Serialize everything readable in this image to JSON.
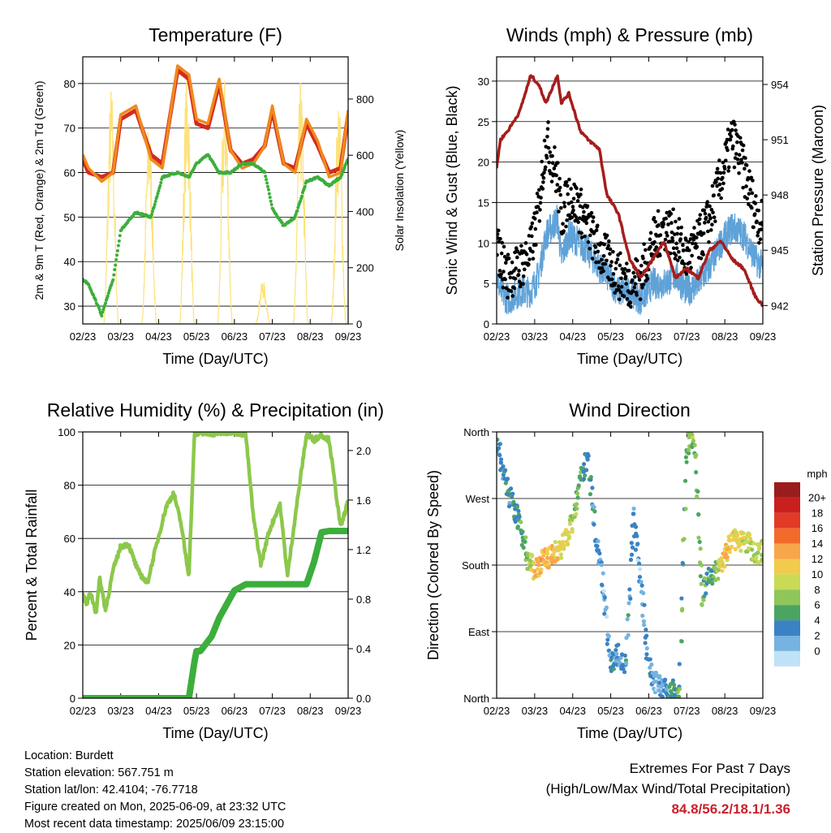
{
  "colors": {
    "temp_red": "#d42a20",
    "temp_orange": "#f08a1c",
    "dewpoint": "#3cae3c",
    "insolation": "#fde27a",
    "wind": "#5fa2d8",
    "gust": "#000000",
    "pressure": "#a51d1d",
    "rh": "#8cc84b",
    "precip": "#3cae3c",
    "extremes": "#c8202a"
  },
  "x_ticks": [
    "02/23",
    "03/23",
    "04/23",
    "05/23",
    "06/23",
    "07/23",
    "08/23",
    "09/23"
  ],
  "xlabel": "Time (Day/UTC)",
  "chart_data": [
    {
      "type": "line",
      "title": "Temperature (F)",
      "xlabel": "Time (Day/UTC)",
      "ylabel": "2m & 9m T (Red, Orange) & 2m Td (Green)",
      "ylabel_right": "Solar Insolation (Yellow)",
      "ylim": [
        26,
        86
      ],
      "ylim_right": [
        0,
        950
      ],
      "yticks": [
        30,
        40,
        50,
        60,
        70,
        80
      ],
      "yticks_right": [
        0,
        200,
        400,
        600,
        800
      ],
      "grid": true,
      "x": [
        0,
        0.15,
        0.5,
        0.8,
        1,
        1.4,
        1.8,
        2.1,
        2.5,
        2.8,
        3,
        3.3,
        3.6,
        3.9,
        4.2,
        4.5,
        4.8,
        5,
        5.3,
        5.6,
        5.9,
        6.2,
        6.5,
        6.8,
        7
      ],
      "series": [
        {
          "name": "2m T",
          "values": [
            64,
            61,
            58,
            60,
            73,
            75,
            63,
            61,
            84,
            82,
            72,
            71,
            81,
            65,
            61,
            62,
            66,
            75,
            62,
            60,
            72,
            67,
            59,
            60,
            74
          ]
        },
        {
          "name": "9m T",
          "values": [
            63,
            60,
            59,
            60,
            72,
            74,
            64,
            62,
            83,
            81,
            71,
            70,
            80,
            65,
            62,
            63,
            66,
            74,
            62,
            61,
            71,
            66,
            60,
            61,
            73
          ]
        },
        {
          "name": "2m Td",
          "values": [
            36,
            35,
            28,
            36,
            47,
            51,
            50,
            59,
            60,
            59,
            62,
            64,
            60,
            60,
            62,
            62,
            60,
            52,
            48,
            50,
            58,
            59,
            57,
            59,
            63
          ]
        }
      ],
      "insolation": {
        "days": [
          0,
          1,
          2,
          3,
          4,
          5,
          6
        ],
        "peaks": [
          860,
          750,
          920,
          890,
          160,
          870,
          830
        ]
      }
    },
    {
      "type": "line",
      "title": "Winds (mph) & Pressure (mb)",
      "xlabel": "Time (Day/UTC)",
      "ylabel": "Sonic Wind & Gust (Blue, Black)",
      "ylabel_right": "Station Pressure (Maroon)",
      "ylim": [
        0,
        33
      ],
      "ylim_right": [
        941,
        955.5
      ],
      "yticks": [
        0,
        5,
        10,
        15,
        20,
        25,
        30
      ],
      "yticks_right": [
        942,
        945,
        948,
        951,
        954
      ],
      "grid": true,
      "x": [
        0,
        0.1,
        0.3,
        0.6,
        0.9,
        1.1,
        1.3,
        1.6,
        1.7,
        1.9,
        2.2,
        2.4,
        2.7,
        2.9,
        3.2,
        3.5,
        3.8,
        4.1,
        4.4,
        4.7,
        5,
        5.3,
        5.6,
        5.9,
        6.2,
        6.5,
        6.8,
        7
      ],
      "series": [
        {
          "name": "Sonic Wind",
          "values": [
            6,
            4,
            3,
            4,
            4,
            6,
            11,
            13,
            8,
            11,
            10,
            9,
            7,
            6,
            4,
            4,
            3,
            5,
            5,
            6,
            4,
            5,
            7,
            10,
            12,
            11,
            8,
            7
          ]
        },
        {
          "name": "Gust",
          "values": [
            10,
            8,
            6,
            7,
            9,
            14,
            23,
            18,
            13,
            16,
            14,
            12,
            9,
            8,
            6,
            5,
            6,
            10,
            12,
            11,
            8,
            10,
            13,
            18,
            23,
            19,
            14,
            12
          ]
        },
        {
          "name": "Station Pressure",
          "values": [
            949.5,
            951,
            951.5,
            952.5,
            954.5,
            954,
            953,
            954.5,
            953,
            953.5,
            951.5,
            951,
            950.5,
            948,
            947,
            944.5,
            943.5,
            944.5,
            945.5,
            943.5,
            944,
            943.5,
            945,
            945.5,
            944.5,
            944,
            942.5,
            942
          ]
        }
      ]
    },
    {
      "type": "line",
      "title": "Relative Humidity (%) & Precipitation (in)",
      "xlabel": "Time (Day/UTC)",
      "ylabel": "Percent & Total Rainfall",
      "ylim": [
        0,
        100
      ],
      "ylim_right": [
        0,
        2.15
      ],
      "yticks": [
        0,
        20,
        40,
        60,
        80,
        100
      ],
      "yticks_right": [
        0,
        0.4,
        0.8,
        1.2,
        1.6,
        2.0
      ],
      "grid": true,
      "x": [
        0,
        0.1,
        0.2,
        0.35,
        0.45,
        0.6,
        0.8,
        1,
        1.2,
        1.45,
        1.7,
        1.9,
        2.2,
        2.4,
        2.6,
        2.7,
        2.8,
        2.95,
        3,
        3.1,
        3.4,
        3.6,
        4,
        4.3,
        4.5,
        4.7,
        4.9,
        5.2,
        5.4,
        5.6,
        5.9,
        6.1,
        6.3,
        6.5,
        6.8,
        7
      ],
      "series": [
        {
          "name": "Relative Humidity",
          "values": [
            39,
            35,
            40,
            32,
            45,
            33,
            48,
            57,
            58,
            48,
            43,
            55,
            72,
            77,
            65,
            55,
            46,
            100,
            99,
            100,
            99,
            100,
            100,
            99,
            68,
            50,
            62,
            73,
            46,
            68,
            99,
            97,
            99,
            97,
            64,
            74
          ]
        },
        {
          "name": "Precipitation",
          "values": [
            0,
            0,
            0,
            0,
            0,
            0,
            0,
            0,
            0,
            0,
            0,
            0,
            0,
            0,
            0,
            0,
            0,
            0.3,
            0.38,
            0.38,
            0.5,
            0.65,
            0.87,
            0.92,
            0.92,
            0.92,
            0.92,
            0.92,
            0.92,
            0.92,
            0.92,
            1.1,
            1.34,
            1.35,
            1.35,
            1.35
          ]
        }
      ]
    },
    {
      "type": "scatter",
      "title": "Wind Direction",
      "xlabel": "Time (Day/UTC)",
      "ylabel": "Direction (Colored By Speed)",
      "yticks": [
        "North",
        "East",
        "South",
        "West",
        "North"
      ],
      "ylim": [
        0,
        360
      ],
      "grid": true,
      "colorbar": {
        "title": "mph",
        "labels": [
          "20+",
          "18",
          "16",
          "14",
          "12",
          "10",
          "8",
          "6",
          "4",
          "2",
          "0"
        ],
        "colors": [
          "#9b1c1c",
          "#c9201f",
          "#e13b27",
          "#f26b2b",
          "#f9a64a",
          "#f2cb4d",
          "#c8da56",
          "#8fc65a",
          "#4ca462",
          "#3a82c4",
          "#76b3e0",
          "#bfe2f6"
        ]
      },
      "x": [
        0,
        0.2,
        0.4,
        0.6,
        0.8,
        1,
        1.2,
        1.4,
        1.6,
        1.8,
        2,
        2.2,
        2.4,
        2.6,
        2.8,
        3,
        3.2,
        3.4,
        3.6,
        3.8,
        4,
        4.2,
        4.4,
        4.6,
        4.8,
        5,
        5.2,
        5.4,
        5.6,
        5.8,
        6,
        6.2,
        6.4,
        6.6,
        6.8,
        7
      ],
      "values": [
        345,
        300,
        265,
        235,
        190,
        175,
        185,
        190,
        200,
        210,
        240,
        290,
        330,
        220,
        150,
        50,
        60,
        40,
        250,
        150,
        40,
        20,
        15,
        10,
        5,
        345,
        350,
        140,
        170,
        170,
        190,
        220,
        210,
        210,
        195,
        200
      ],
      "speeds": [
        4,
        4,
        5,
        5,
        7,
        12,
        14,
        13,
        12,
        11,
        9,
        6,
        5,
        3,
        2,
        4,
        3,
        4,
        3,
        2,
        4,
        2,
        3,
        5,
        6,
        6,
        8,
        7,
        5,
        8,
        13,
        12,
        11,
        10,
        9,
        9
      ]
    }
  ],
  "footer": {
    "location": "Location: Burdett",
    "elevation": "Station elevation: 567.751 m",
    "latlon": "Station lat/lon: 42.4104; -76.7718",
    "created": "Figure created on Mon, 2025-06-09, at 23:32 UTC",
    "recent": "Most recent data timestamp: 2025/06/09 23:15:00",
    "extremes_title": "Extremes For Past 7 Days",
    "extremes_subtitle": "(High/Low/Max Wind/Total Precipitation)",
    "extremes_values": "84.8/56.2/18.1/1.36"
  }
}
